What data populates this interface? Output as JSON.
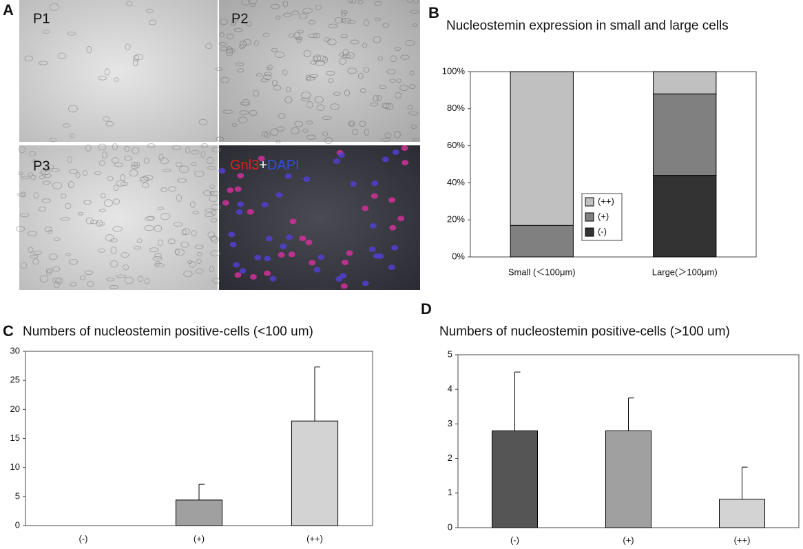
{
  "panel_a": {
    "panel": "A",
    "labels": [
      "P1",
      "P2",
      "P3"
    ],
    "overlay": [
      {
        "text": "Gnl3",
        "color": "#e02020"
      },
      {
        "text": "+",
        "color": "#ffffff"
      },
      {
        "text": "DAPI",
        "color": "#3050e0"
      }
    ]
  },
  "chart_data": [
    {
      "type": "stacked_bar",
      "panel": "B",
      "title": "Nucleostemin expression in small and large cells",
      "categories": [
        "Small (＜100μm)",
        "Large(＞100μm)"
      ],
      "series": [
        {
          "name": "(-)",
          "color": "#333333",
          "values": [
            0,
            44
          ]
        },
        {
          "name": "(+)",
          "color": "#808080",
          "values": [
            17,
            44
          ]
        },
        {
          "name": "(++)",
          "color": "#c0c0c0",
          "values": [
            83,
            12
          ]
        }
      ],
      "ylim": [
        0,
        100
      ],
      "yticks": [
        {
          "value": 0,
          "label": "0%"
        },
        {
          "value": 20,
          "label": "20%"
        },
        {
          "value": 40,
          "label": "40%"
        },
        {
          "value": 60,
          "label": "60%"
        },
        {
          "value": 80,
          "label": "80%"
        },
        {
          "value": 100,
          "label": "100%"
        }
      ],
      "legend": "center"
    },
    {
      "type": "bar",
      "panel": "C",
      "title": "Numbers of nucleostemin positive-cells (<100 um)",
      "categories": [
        "(-)",
        "(+)",
        "(++)"
      ],
      "values": [
        0,
        4.4,
        18
      ],
      "errors": [
        null,
        2.7,
        9.3
      ],
      "colors": [
        "#555555",
        "#a0a0a0",
        "#d3d3d3"
      ],
      "ylim": [
        0,
        30
      ],
      "yticks": [
        0,
        5,
        10,
        15,
        20,
        25,
        30
      ]
    },
    {
      "type": "bar",
      "panel": "D",
      "title": "Numbers of nucleostemin positive-cells (>100 um)",
      "categories": [
        "(-)",
        "(+)",
        "(++)"
      ],
      "values": [
        2.8,
        2.8,
        0.82
      ],
      "errors": [
        1.7,
        0.95,
        0.93
      ],
      "colors": [
        "#555555",
        "#a0a0a0",
        "#d3d3d3"
      ],
      "ylim": [
        0,
        5
      ],
      "yticks": [
        0,
        1,
        2,
        3,
        4,
        5
      ]
    }
  ]
}
